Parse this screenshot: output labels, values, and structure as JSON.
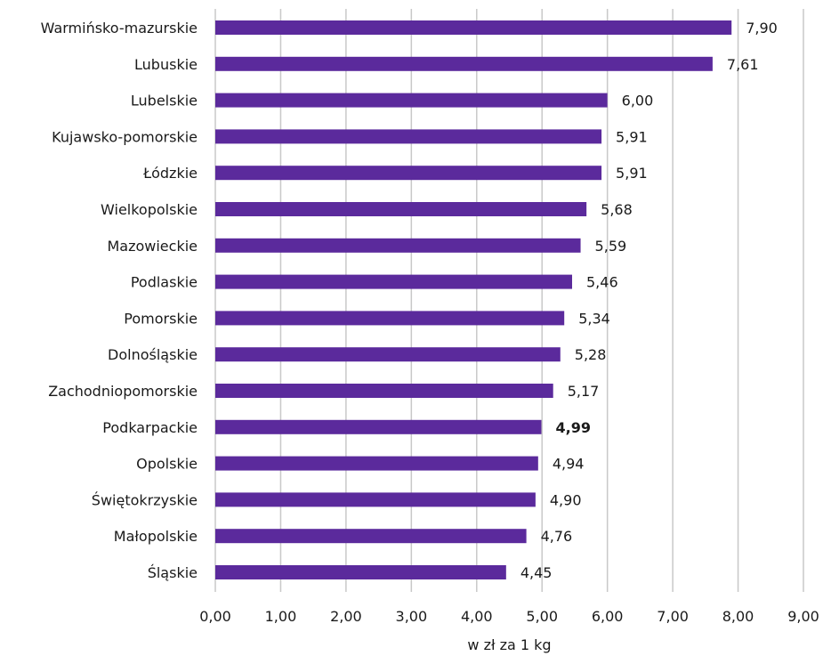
{
  "chart_data": {
    "type": "bar",
    "orientation": "horizontal",
    "categories": [
      "Warmińsko-mazurskie",
      "Lubuskie",
      "Lubelskie",
      "Kujawsko-pomorskie",
      "Łódzkie",
      "Wielkopolskie",
      "Mazowieckie",
      "Podlaskie",
      "Pomorskie",
      "Dolnośląskie",
      "Zachodniopomorskie",
      "Podkarpackie",
      "Opolskie",
      "Świętokrzyskie",
      "Małopolskie",
      "Śląskie"
    ],
    "values": [
      7.9,
      7.61,
      6.0,
      5.91,
      5.91,
      5.68,
      5.59,
      5.46,
      5.34,
      5.28,
      5.17,
      4.99,
      4.94,
      4.9,
      4.76,
      4.45
    ],
    "value_labels": [
      "7,90",
      "7,61",
      "6,00",
      "5,91",
      "5,91",
      "5,68",
      "5,59",
      "5,46",
      "5,34",
      "5,28",
      "5,17",
      "4,99",
      "4,94",
      "4,90",
      "4,76",
      "4,45"
    ],
    "highlighted_category": "Podkarpackie",
    "xlabel": "w zł za 1 kg",
    "ylabel": "",
    "title": "",
    "xlim": [
      0,
      9
    ],
    "x_ticks": [
      "0,00",
      "1,00",
      "2,00",
      "3,00",
      "4,00",
      "5,00",
      "6,00",
      "7,00",
      "8,00",
      "9,00"
    ],
    "grid": "vertical",
    "bar_color": "#5b2a9c"
  }
}
